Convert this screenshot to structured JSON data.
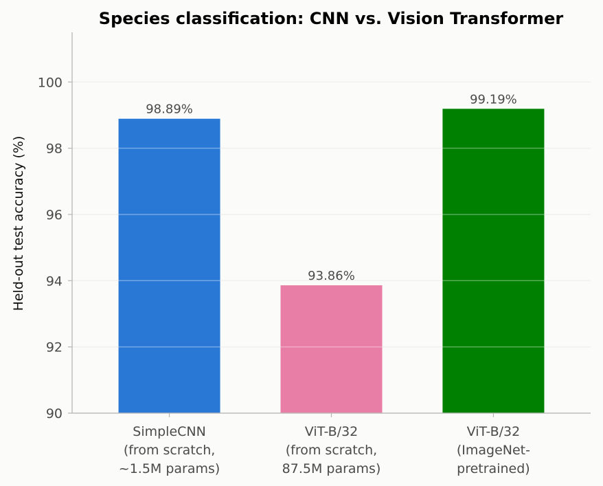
{
  "chart_data": {
    "type": "bar",
    "title": "Species classification: CNN vs. Vision Transformer",
    "xlabel": "",
    "ylabel": "Held-out test accuracy (%)",
    "ylim": [
      90,
      101.5
    ],
    "yticks": [
      "90",
      "92",
      "94",
      "96",
      "98",
      "100"
    ],
    "grid": true,
    "legend": "none",
    "categories": [
      [
        "SimpleCNN",
        "(from scratch,",
        "~1.5M params)"
      ],
      [
        "ViT-B/32",
        "(from scratch,",
        "87.5M params)"
      ],
      [
        "ViT-B/32",
        "(ImageNet-",
        "pretrained)"
      ]
    ],
    "values": [
      98.89,
      93.86,
      99.19
    ],
    "data_labels": [
      "98.89%",
      "93.86%",
      "99.19%"
    ],
    "colors": [
      "#2a78d6",
      "#e87ea5",
      "#008000"
    ]
  }
}
